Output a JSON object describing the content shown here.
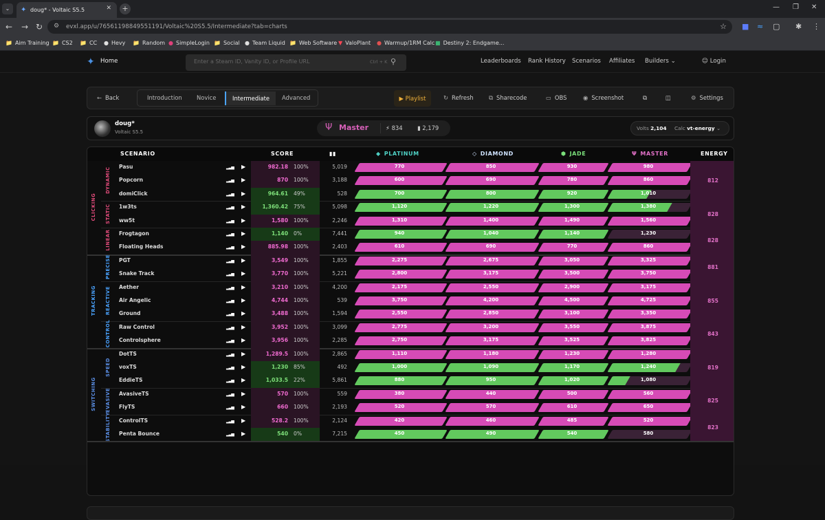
{
  "browser": {
    "tab_title": "doug* - Voltaic S5.5",
    "url": "evxl.app/u/76561198849551191/Voltaic%20S5.5/Intermediate?tab=charts",
    "bookmarks": [
      "Aim Training",
      "CS2",
      "CC",
      "Hevy",
      "Random",
      "SimpleLogin",
      "Social",
      "Team Liquid",
      "Web Software",
      "ValoPlant",
      "Warmup/1RM Calc",
      "Destiny 2: Endgame..."
    ]
  },
  "nav": {
    "home": "Home",
    "search_placeholder": "Enter a Steam ID, Vanity ID, or Profile URL",
    "search_shortcut": "Ctrl + K",
    "links": [
      "Leaderboards",
      "Rank History",
      "Scenarios",
      "Affiliates",
      "Builders",
      "Login"
    ]
  },
  "toolbar": {
    "back": "Back",
    "difficulties": [
      "Introduction",
      "Novice",
      "Intermediate",
      "Advanced"
    ],
    "active_difficulty": "Intermediate",
    "playlist": "Playlist",
    "refresh": "Refresh",
    "sharecode": "Sharecode",
    "obs": "OBS",
    "screenshot": "Screenshot",
    "settings": "Settings"
  },
  "profile": {
    "name": "doug*",
    "season": "Voltaic S5.5",
    "rank": "Master",
    "energy_stat": "834",
    "score_stat": "2,179",
    "volts_label": "Volts",
    "volts": "2,104",
    "calc_label": "Calc",
    "calc": "vt-energy"
  },
  "colors": {
    "pink": "#d64bb6",
    "green": "#62c95e",
    "rowbg": "#2a1424",
    "energybg": "#3a1532",
    "clicking": "#e04b7a",
    "tracking": "#4aa3ff",
    "switching": "#5b8fe6"
  },
  "table": {
    "headers": {
      "scenario": "SCENARIO",
      "score": "SCORE",
      "platinum": "PLATINUM",
      "diamond": "DIAMOND",
      "jade": "JADE",
      "master": "MASTER",
      "energy": "ENERGY"
    },
    "categories": [
      {
        "name": "CLICKING",
        "subs": [
          {
            "name": "DYNAMIC",
            "energy": "812",
            "rows": [
              {
                "name": "Pasu",
                "score": "982.18",
                "pct": "100%",
                "plays": "5,019",
                "tiers": [
                  "770",
                  "850",
                  "930",
                  "980"
                ],
                "progress": [
                  1,
                  1,
                  1,
                  1
                ]
              },
              {
                "name": "Popcorn",
                "score": "870",
                "pct": "100%",
                "plays": "3,188",
                "tiers": [
                  "600",
                  "690",
                  "780",
                  "860"
                ],
                "progress": [
                  1,
                  1,
                  1,
                  1
                ]
              },
              {
                "name": "domiClick",
                "score": "964.61",
                "pct": "49%",
                "plays": "528",
                "tiers": [
                  "700",
                  "800",
                  "920",
                  "1,010"
                ],
                "progress": [
                  1,
                  1,
                  1,
                  0.49
                ]
              }
            ]
          },
          {
            "name": "STATIC",
            "energy": "828",
            "rows": [
              {
                "name": "1w3ts",
                "score": "1,360.42",
                "pct": "75%",
                "plays": "5,098",
                "tiers": [
                  "1,120",
                  "1,220",
                  "1,300",
                  "1,380"
                ],
                "progress": [
                  1,
                  1,
                  1,
                  0.75
                ]
              },
              {
                "name": "ww5t",
                "score": "1,580",
                "pct": "100%",
                "plays": "2,246",
                "tiers": [
                  "1,310",
                  "1,400",
                  "1,490",
                  "1,560"
                ],
                "progress": [
                  1,
                  1,
                  1,
                  1
                ]
              }
            ]
          },
          {
            "name": "LINEAR",
            "energy": "828",
            "rows": [
              {
                "name": "Frogtagon",
                "score": "1,140",
                "pct": "0%",
                "plays": "7,441",
                "tiers": [
                  "940",
                  "1,040",
                  "1,140",
                  "1,230"
                ],
                "progress": [
                  1,
                  1,
                  1,
                  0
                ]
              },
              {
                "name": "Floating Heads",
                "score": "885.98",
                "pct": "100%",
                "plays": "2,403",
                "tiers": [
                  "610",
                  "690",
                  "770",
                  "860"
                ],
                "progress": [
                  1,
                  1,
                  1,
                  1
                ]
              }
            ]
          }
        ]
      },
      {
        "name": "TRACKING",
        "subs": [
          {
            "name": "PRECISE",
            "energy": "881",
            "rows": [
              {
                "name": "PGT",
                "score": "3,549",
                "pct": "100%",
                "plays": "1,855",
                "tiers": [
                  "2,275",
                  "2,675",
                  "3,050",
                  "3,325"
                ],
                "progress": [
                  1,
                  1,
                  1,
                  1
                ]
              },
              {
                "name": "Snake Track",
                "score": "3,770",
                "pct": "100%",
                "plays": "5,221",
                "tiers": [
                  "2,800",
                  "3,175",
                  "3,500",
                  "3,750"
                ],
                "progress": [
                  1,
                  1,
                  1,
                  1
                ]
              }
            ]
          },
          {
            "name": "REACTIVE",
            "energy": "855",
            "rows": [
              {
                "name": "Aether",
                "score": "3,210",
                "pct": "100%",
                "plays": "4,200",
                "tiers": [
                  "2,175",
                  "2,550",
                  "2,900",
                  "3,175"
                ],
                "progress": [
                  1,
                  1,
                  1,
                  1
                ]
              },
              {
                "name": "Air Angelic",
                "score": "4,744",
                "pct": "100%",
                "plays": "539",
                "tiers": [
                  "3,750",
                  "4,200",
                  "4,500",
                  "4,725"
                ],
                "progress": [
                  1,
                  1,
                  1,
                  1
                ]
              },
              {
                "name": "Ground",
                "score": "3,488",
                "pct": "100%",
                "plays": "1,594",
                "tiers": [
                  "2,550",
                  "2,850",
                  "3,100",
                  "3,350"
                ],
                "progress": [
                  1,
                  1,
                  1,
                  1
                ]
              }
            ]
          },
          {
            "name": "CONTROL",
            "energy": "843",
            "rows": [
              {
                "name": "Raw Control",
                "score": "3,952",
                "pct": "100%",
                "plays": "3,099",
                "tiers": [
                  "2,775",
                  "3,200",
                  "3,550",
                  "3,875"
                ],
                "progress": [
                  1,
                  1,
                  1,
                  1
                ]
              },
              {
                "name": "Controlsphere",
                "score": "3,956",
                "pct": "100%",
                "plays": "2,285",
                "tiers": [
                  "2,750",
                  "3,175",
                  "3,525",
                  "3,825"
                ],
                "progress": [
                  1,
                  1,
                  1,
                  1
                ]
              }
            ]
          }
        ]
      },
      {
        "name": "SWITCHING",
        "subs": [
          {
            "name": "SPEED",
            "energy": "819",
            "rows": [
              {
                "name": "DotTS",
                "score": "1,289.5",
                "pct": "100%",
                "plays": "2,865",
                "tiers": [
                  "1,110",
                  "1,180",
                  "1,230",
                  "1,280"
                ],
                "progress": [
                  1,
                  1,
                  1,
                  1
                ]
              },
              {
                "name": "voxTS",
                "score": "1,230",
                "pct": "85%",
                "plays": "492",
                "tiers": [
                  "1,000",
                  "1,090",
                  "1,170",
                  "1,240"
                ],
                "progress": [
                  1,
                  1,
                  1,
                  0.85
                ]
              },
              {
                "name": "EddieTS",
                "score": "1,033.5",
                "pct": "22%",
                "plays": "5,861",
                "tiers": [
                  "880",
                  "950",
                  "1,020",
                  "1,080"
                ],
                "progress": [
                  1,
                  1,
                  1,
                  0.22
                ]
              }
            ]
          },
          {
            "name": "EVASIVE",
            "energy": "825",
            "rows": [
              {
                "name": "AvasiveTS",
                "score": "570",
                "pct": "100%",
                "plays": "559",
                "tiers": [
                  "380",
                  "440",
                  "500",
                  "560"
                ],
                "progress": [
                  1,
                  1,
                  1,
                  1
                ]
              },
              {
                "name": "FlyTS",
                "score": "660",
                "pct": "100%",
                "plays": "2,193",
                "tiers": [
                  "520",
                  "570",
                  "610",
                  "650"
                ],
                "progress": [
                  1,
                  1,
                  1,
                  1
                ]
              }
            ]
          },
          {
            "name": "STABILITY",
            "energy": "823",
            "rows": [
              {
                "name": "ControlTS",
                "score": "528.2",
                "pct": "100%",
                "plays": "2,124",
                "tiers": [
                  "420",
                  "460",
                  "485",
                  "520"
                ],
                "progress": [
                  1,
                  1,
                  1,
                  1
                ]
              },
              {
                "name": "Penta Bounce",
                "score": "540",
                "pct": "0%",
                "plays": "7,215",
                "tiers": [
                  "450",
                  "490",
                  "540",
                  "580"
                ],
                "progress": [
                  1,
                  1,
                  1,
                  0
                ]
              }
            ]
          }
        ]
      }
    ]
  }
}
